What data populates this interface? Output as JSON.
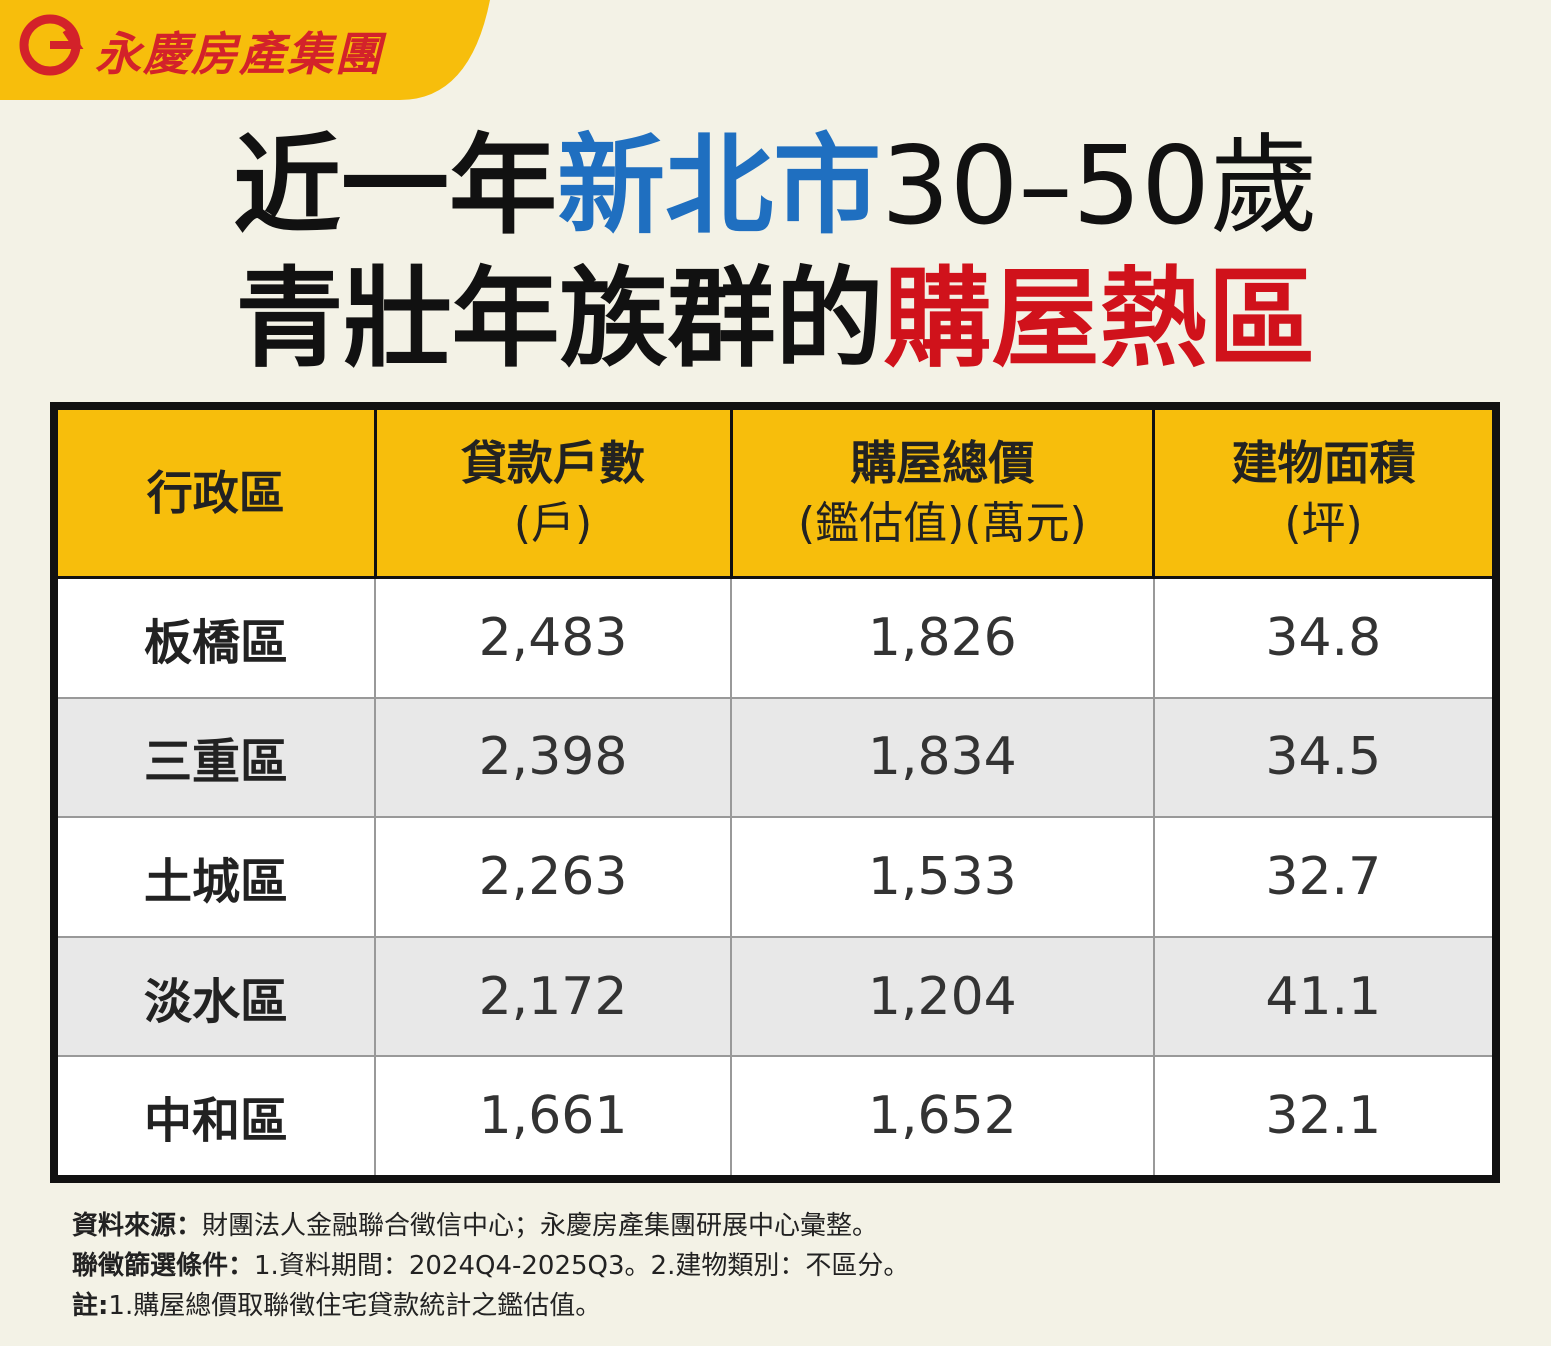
{
  "logo": {
    "text": "永慶房產集團"
  },
  "title": {
    "line1": [
      "近一年",
      "新北市",
      "30–50歲"
    ],
    "line2": [
      "青壯年族群的",
      "購屋熱區"
    ]
  },
  "table": {
    "headers": [
      [
        "行政區"
      ],
      [
        "貸款戶數",
        "(戶)"
      ],
      [
        "購屋總價",
        "(鑑估值)(萬元)"
      ],
      [
        "建物面積",
        "(坪)"
      ]
    ],
    "rows": [
      [
        "板橋區",
        "2,483",
        "1,826",
        "34.8"
      ],
      [
        "三重區",
        "2,398",
        "1,834",
        "34.5"
      ],
      [
        "土城區",
        "2,263",
        "1,533",
        "32.7"
      ],
      [
        "淡水區",
        "2,172",
        "1,204",
        "41.1"
      ],
      [
        "中和區",
        "1,661",
        "1,652",
        "32.1"
      ]
    ]
  },
  "notes": [
    {
      "label": "資料來源：",
      "text": "財團法人金融聯合徵信中心；永慶房產集團研展中心彙整。"
    },
    {
      "label": "聯徵篩選條件：",
      "text": "1.資料期間：2024Q4-2025Q3。2.建物類別：不區分。"
    },
    {
      "label": "註:",
      "text": "1.購屋總價取聯徵住宅貸款統計之鑑估值。"
    }
  ]
}
